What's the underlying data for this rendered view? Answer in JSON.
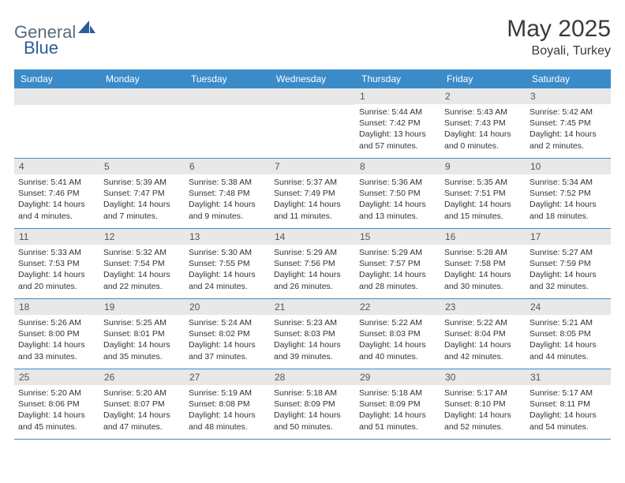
{
  "brand": {
    "part1": "General",
    "part2": "Blue"
  },
  "title": "May 2025",
  "location": "Boyali, Turkey",
  "colors": {
    "header_bg": "#3b8bc9",
    "header_text": "#ffffff",
    "daynum_bg": "#e8e8e8",
    "border": "#3b8bc9",
    "brand_gray": "#5a6b7a",
    "brand_blue": "#2a5d9c"
  },
  "day_headers": [
    "Sunday",
    "Monday",
    "Tuesday",
    "Wednesday",
    "Thursday",
    "Friday",
    "Saturday"
  ],
  "weeks": [
    [
      {
        "empty": true
      },
      {
        "empty": true
      },
      {
        "empty": true
      },
      {
        "empty": true
      },
      {
        "num": "1",
        "sunrise": "5:44 AM",
        "sunset": "7:42 PM",
        "daylight": "13 hours and 57 minutes."
      },
      {
        "num": "2",
        "sunrise": "5:43 AM",
        "sunset": "7:43 PM",
        "daylight": "14 hours and 0 minutes."
      },
      {
        "num": "3",
        "sunrise": "5:42 AM",
        "sunset": "7:45 PM",
        "daylight": "14 hours and 2 minutes."
      }
    ],
    [
      {
        "num": "4",
        "sunrise": "5:41 AM",
        "sunset": "7:46 PM",
        "daylight": "14 hours and 4 minutes."
      },
      {
        "num": "5",
        "sunrise": "5:39 AM",
        "sunset": "7:47 PM",
        "daylight": "14 hours and 7 minutes."
      },
      {
        "num": "6",
        "sunrise": "5:38 AM",
        "sunset": "7:48 PM",
        "daylight": "14 hours and 9 minutes."
      },
      {
        "num": "7",
        "sunrise": "5:37 AM",
        "sunset": "7:49 PM",
        "daylight": "14 hours and 11 minutes."
      },
      {
        "num": "8",
        "sunrise": "5:36 AM",
        "sunset": "7:50 PM",
        "daylight": "14 hours and 13 minutes."
      },
      {
        "num": "9",
        "sunrise": "5:35 AM",
        "sunset": "7:51 PM",
        "daylight": "14 hours and 15 minutes."
      },
      {
        "num": "10",
        "sunrise": "5:34 AM",
        "sunset": "7:52 PM",
        "daylight": "14 hours and 18 minutes."
      }
    ],
    [
      {
        "num": "11",
        "sunrise": "5:33 AM",
        "sunset": "7:53 PM",
        "daylight": "14 hours and 20 minutes."
      },
      {
        "num": "12",
        "sunrise": "5:32 AM",
        "sunset": "7:54 PM",
        "daylight": "14 hours and 22 minutes."
      },
      {
        "num": "13",
        "sunrise": "5:30 AM",
        "sunset": "7:55 PM",
        "daylight": "14 hours and 24 minutes."
      },
      {
        "num": "14",
        "sunrise": "5:29 AM",
        "sunset": "7:56 PM",
        "daylight": "14 hours and 26 minutes."
      },
      {
        "num": "15",
        "sunrise": "5:29 AM",
        "sunset": "7:57 PM",
        "daylight": "14 hours and 28 minutes."
      },
      {
        "num": "16",
        "sunrise": "5:28 AM",
        "sunset": "7:58 PM",
        "daylight": "14 hours and 30 minutes."
      },
      {
        "num": "17",
        "sunrise": "5:27 AM",
        "sunset": "7:59 PM",
        "daylight": "14 hours and 32 minutes."
      }
    ],
    [
      {
        "num": "18",
        "sunrise": "5:26 AM",
        "sunset": "8:00 PM",
        "daylight": "14 hours and 33 minutes."
      },
      {
        "num": "19",
        "sunrise": "5:25 AM",
        "sunset": "8:01 PM",
        "daylight": "14 hours and 35 minutes."
      },
      {
        "num": "20",
        "sunrise": "5:24 AM",
        "sunset": "8:02 PM",
        "daylight": "14 hours and 37 minutes."
      },
      {
        "num": "21",
        "sunrise": "5:23 AM",
        "sunset": "8:03 PM",
        "daylight": "14 hours and 39 minutes."
      },
      {
        "num": "22",
        "sunrise": "5:22 AM",
        "sunset": "8:03 PM",
        "daylight": "14 hours and 40 minutes."
      },
      {
        "num": "23",
        "sunrise": "5:22 AM",
        "sunset": "8:04 PM",
        "daylight": "14 hours and 42 minutes."
      },
      {
        "num": "24",
        "sunrise": "5:21 AM",
        "sunset": "8:05 PM",
        "daylight": "14 hours and 44 minutes."
      }
    ],
    [
      {
        "num": "25",
        "sunrise": "5:20 AM",
        "sunset": "8:06 PM",
        "daylight": "14 hours and 45 minutes."
      },
      {
        "num": "26",
        "sunrise": "5:20 AM",
        "sunset": "8:07 PM",
        "daylight": "14 hours and 47 minutes."
      },
      {
        "num": "27",
        "sunrise": "5:19 AM",
        "sunset": "8:08 PM",
        "daylight": "14 hours and 48 minutes."
      },
      {
        "num": "28",
        "sunrise": "5:18 AM",
        "sunset": "8:09 PM",
        "daylight": "14 hours and 50 minutes."
      },
      {
        "num": "29",
        "sunrise": "5:18 AM",
        "sunset": "8:09 PM",
        "daylight": "14 hours and 51 minutes."
      },
      {
        "num": "30",
        "sunrise": "5:17 AM",
        "sunset": "8:10 PM",
        "daylight": "14 hours and 52 minutes."
      },
      {
        "num": "31",
        "sunrise": "5:17 AM",
        "sunset": "8:11 PM",
        "daylight": "14 hours and 54 minutes."
      }
    ]
  ]
}
